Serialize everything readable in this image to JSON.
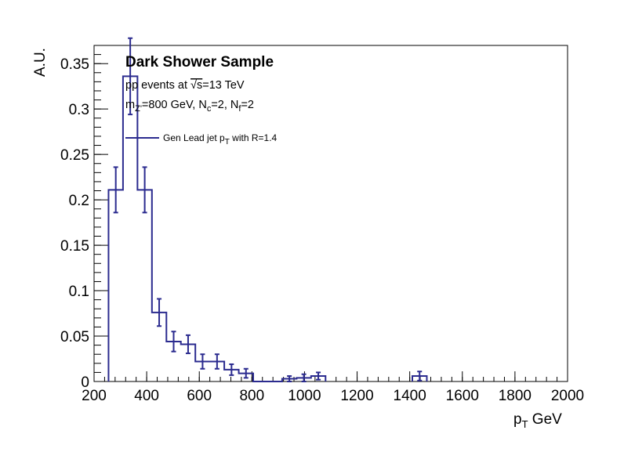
{
  "chart_data": {
    "type": "histogram",
    "title": "Dark Shower Sample",
    "info_lines": [
      {
        "parts": [
          {
            "t": "pp events at "
          },
          {
            "t": "√s",
            "style": "sqrt"
          },
          {
            "t": "=13 TeV"
          }
        ]
      },
      {
        "parts": [
          {
            "t": "m"
          },
          {
            "t": "Z'",
            "style": "sub"
          },
          {
            "t": "=800 GeV, N"
          },
          {
            "t": "c",
            "style": "sub"
          },
          {
            "t": "=2, N"
          },
          {
            "t": "f",
            "style": "sub"
          },
          {
            "t": "=2"
          }
        ]
      }
    ],
    "xlabel": {
      "main": "p",
      "sub": "T",
      "rest": " GeV"
    },
    "ylabel": "A.U.",
    "xlim": [
      200,
      2000
    ],
    "ylim": [
      0,
      0.37
    ],
    "xticks": [
      200,
      400,
      600,
      800,
      1000,
      1200,
      1400,
      1600,
      1800,
      2000
    ],
    "yticks": [
      0,
      0.05,
      0.1,
      0.15,
      0.2,
      0.25,
      0.3,
      0.35
    ],
    "ytick_labels": [
      "0",
      "0.05",
      "0.1",
      "0.15",
      "0.2",
      "0.25",
      "0.3",
      "0.35"
    ],
    "bin_width": 55,
    "series": [
      {
        "name": "Gen Lead jet p_T with R=1.4",
        "legend_parts": [
          {
            "t": "Gen Lead jet p"
          },
          {
            "t": "T",
            "style": "sub"
          },
          {
            "t": " with R=1.4"
          }
        ],
        "color": "#2b2b8f",
        "bins": [
          {
            "lo": 255,
            "hi": 310,
            "y": 0.211,
            "err": 0.025
          },
          {
            "lo": 310,
            "hi": 365,
            "y": 0.336,
            "err": 0.042
          },
          {
            "lo": 365,
            "hi": 420,
            "y": 0.211,
            "err": 0.025
          },
          {
            "lo": 420,
            "hi": 475,
            "y": 0.076,
            "err": 0.015
          },
          {
            "lo": 475,
            "hi": 530,
            "y": 0.044,
            "err": 0.011
          },
          {
            "lo": 530,
            "hi": 585,
            "y": 0.041,
            "err": 0.01
          },
          {
            "lo": 585,
            "hi": 640,
            "y": 0.022,
            "err": 0.008
          },
          {
            "lo": 640,
            "hi": 695,
            "y": 0.022,
            "err": 0.008
          },
          {
            "lo": 695,
            "hi": 750,
            "y": 0.013,
            "err": 0.006
          },
          {
            "lo": 750,
            "hi": 805,
            "y": 0.009,
            "err": 0.005
          },
          {
            "lo": 805,
            "hi": 860,
            "y": 0.0,
            "err": 0.0
          },
          {
            "lo": 860,
            "hi": 915,
            "y": 0.0,
            "err": 0.0
          },
          {
            "lo": 915,
            "hi": 970,
            "y": 0.003,
            "err": 0.003
          },
          {
            "lo": 970,
            "hi": 1025,
            "y": 0.004,
            "err": 0.004
          },
          {
            "lo": 1025,
            "hi": 1080,
            "y": 0.006,
            "err": 0.004
          },
          {
            "lo": 1410,
            "hi": 1465,
            "y": 0.006,
            "err": 0.005
          }
        ]
      }
    ]
  }
}
